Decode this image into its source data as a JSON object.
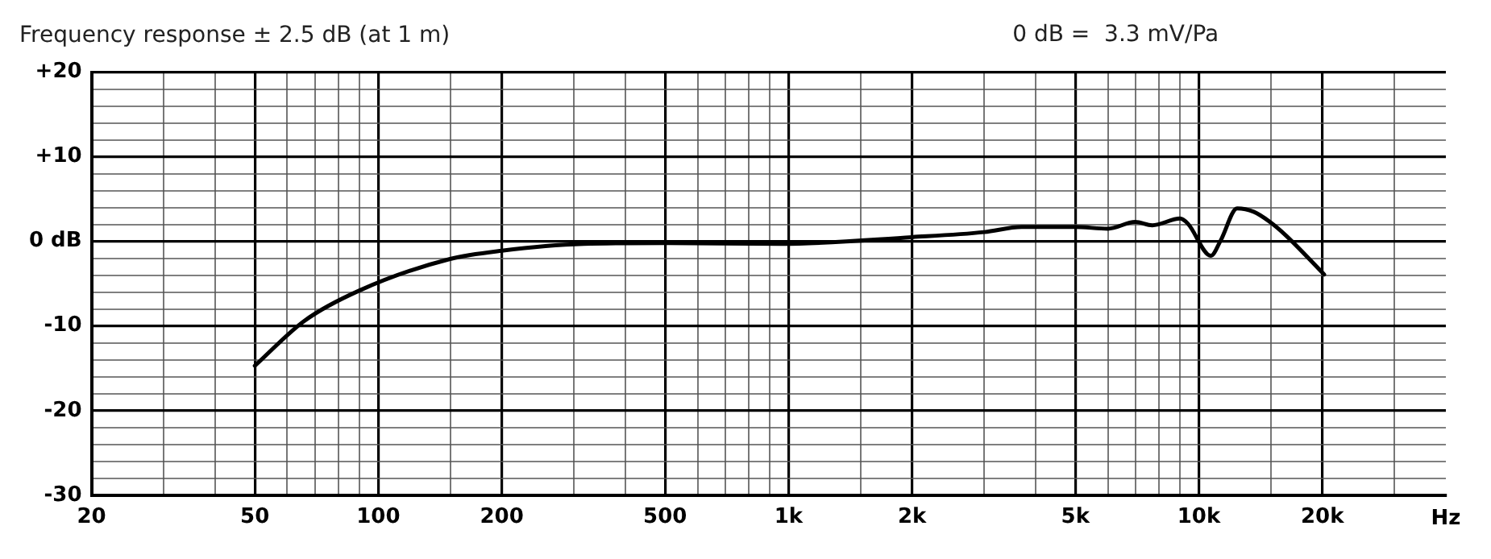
{
  "chart_data": {
    "type": "line",
    "title": "Frequency response ± 2.5 dB (at 1 m)",
    "annotations": [
      "0 dB =  3.3 mV/Pa"
    ],
    "xlabel": "Hz",
    "log": "x",
    "series": [
      {
        "color": "#000000",
        "x": [
          50,
          66,
          90,
          149,
          200,
          317,
          500,
          961,
          2000,
          3000,
          3700,
          5000,
          6000,
          7000,
          7700,
          9000,
          9400,
          10700,
          11300,
          12400,
          13600,
          14900,
          16300,
          20200
        ],
        "values": [
          -14.7,
          -9.4,
          -5.8,
          -2.1,
          -1.1,
          -0.3,
          -0.2,
          -0.3,
          0.5,
          1.1,
          1.7,
          1.7,
          1.5,
          2.3,
          1.9,
          2.7,
          2.1,
          -1.7,
          0.1,
          3.9,
          3.5,
          2.3,
          0.7,
          -3.9
        ]
      }
    ],
    "xlim": [
      20,
      40000
    ],
    "xticks": [
      20,
      {
        "value": 30,
        "label": null
      },
      {
        "value": 40,
        "label": null
      },
      50,
      {
        "value": 60,
        "label": null
      },
      {
        "value": 70,
        "label": null
      },
      {
        "value": 80,
        "label": null
      },
      {
        "value": 90,
        "label": null
      },
      100,
      {
        "value": 150,
        "label": null
      },
      200,
      {
        "value": 300,
        "label": null
      },
      {
        "value": 400,
        "label": null
      },
      500,
      {
        "value": 600,
        "label": null
      },
      {
        "value": 700,
        "label": null
      },
      {
        "value": 800,
        "label": null
      },
      {
        "value": 900,
        "label": null
      },
      {
        "value": 1000,
        "label": "1k"
      },
      {
        "value": 1500,
        "label": null
      },
      {
        "value": 2000,
        "label": "2k"
      },
      {
        "value": 3000,
        "label": null
      },
      {
        "value": 4000,
        "label": null
      },
      {
        "value": 5000,
        "label": "5k"
      },
      {
        "value": 6000,
        "label": null
      },
      {
        "value": 7000,
        "label": null
      },
      {
        "value": 8000,
        "label": null
      },
      {
        "value": 9000,
        "label": null
      },
      {
        "value": 10000,
        "label": "10k"
      },
      {
        "value": 15000,
        "label": null
      },
      {
        "value": 20000,
        "label": "20k"
      },
      {
        "value": 30000,
        "label": null
      }
    ],
    "ylim": [
      -30,
      20
    ],
    "yticks": [
      -30,
      {
        "value": -28,
        "label": null
      },
      {
        "value": -26,
        "label": null
      },
      {
        "value": -24,
        "label": null
      },
      {
        "value": -22,
        "label": null
      },
      -20,
      {
        "value": -18,
        "label": null
      },
      {
        "value": -16,
        "label": null
      },
      {
        "value": -14,
        "label": null
      },
      {
        "value": -12,
        "label": null
      },
      -10,
      {
        "value": -8,
        "label": null
      },
      {
        "value": -6,
        "label": null
      },
      {
        "value": -4,
        "label": null
      },
      {
        "value": -2,
        "label": null
      },
      {
        "value": 0,
        "label": "0 dB"
      },
      {
        "value": 2,
        "label": null
      },
      {
        "value": 4,
        "label": null
      },
      {
        "value": 6,
        "label": null
      },
      {
        "value": 8,
        "label": null
      },
      {
        "value": 10,
        "label": "+10"
      },
      {
        "value": 12,
        "label": null
      },
      {
        "value": 14,
        "label": null
      },
      {
        "value": 16,
        "label": null
      },
      {
        "value": 18,
        "label": null
      },
      {
        "value": 20,
        "label": "+20"
      }
    ],
    "grid": true,
    "marker": "none",
    "line_style": "solid",
    "legend": false
  }
}
